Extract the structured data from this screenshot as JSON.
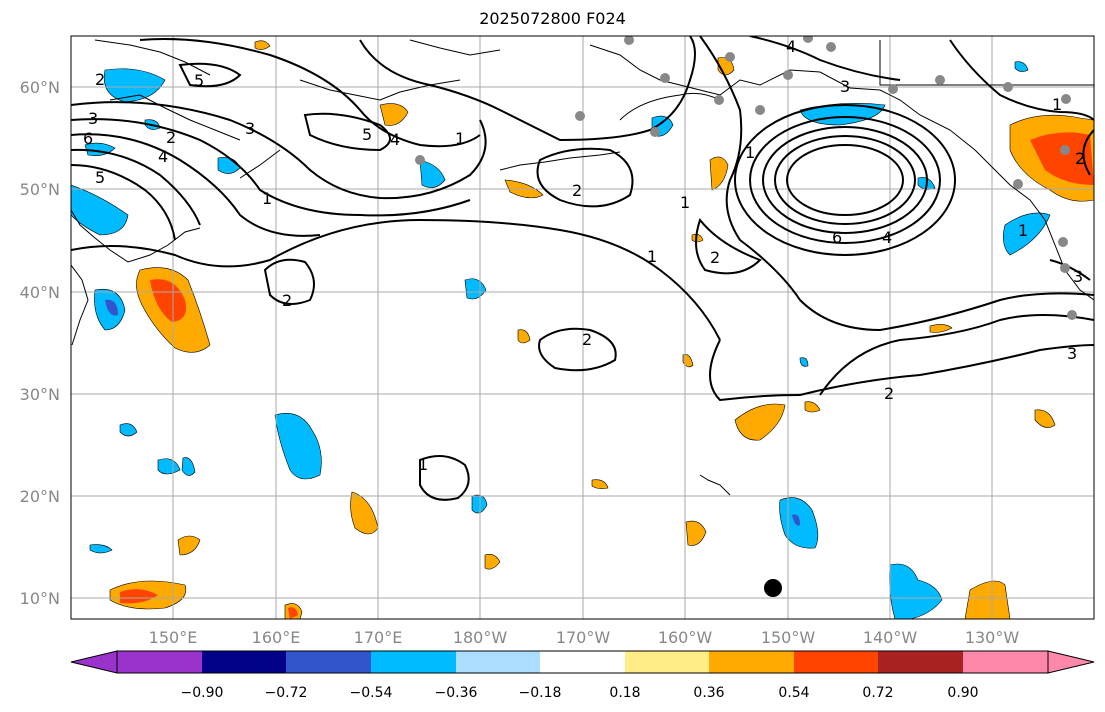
{
  "title": "2025072800 F024",
  "lat_labels": [
    "60°N",
    "50°N",
    "40°N",
    "30°N",
    "20°N",
    "10°N"
  ],
  "lon_labels": [
    "150°E",
    "160°E",
    "170°E",
    "180°W",
    "170°W",
    "160°W",
    "150°W",
    "140°W",
    "130°W"
  ],
  "colorbar": {
    "ticks": [
      "−0.90",
      "−0.72",
      "−0.54",
      "−0.36",
      "−0.18",
      "0.18",
      "0.36",
      "0.54",
      "0.72",
      "0.90"
    ],
    "colors": [
      "#9933cc",
      "#000088",
      "#3355cc",
      "#00bbff",
      "#aaddff",
      "#ffffff",
      "#ffee88",
      "#ffaa00",
      "#ff4400",
      "#aa2222",
      "#ff88aa"
    ]
  },
  "contour_labels": [
    "5",
    "2",
    "3",
    "6",
    "2",
    "4",
    "5",
    "3",
    "1",
    "5",
    "4",
    "1",
    "2",
    "1",
    "2",
    "2",
    "1",
    "6",
    "4",
    "2",
    "1",
    "2",
    "3",
    "3",
    "2",
    "1",
    "1",
    "4",
    "3"
  ]
}
